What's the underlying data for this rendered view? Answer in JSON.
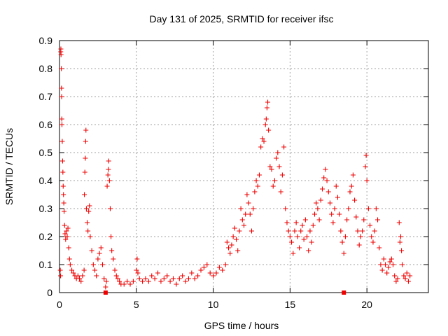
{
  "chart_data": {
    "type": "scatter",
    "title": "Day 131 of 2025, SRMTID for receiver ifsc",
    "xlabel": "GPS time / hours",
    "ylabel": "SRMTID / TECUs",
    "xlim": [
      0,
      24
    ],
    "ylim": [
      0,
      0.9
    ],
    "xticks": [
      0,
      5,
      10,
      15,
      20
    ],
    "yticks": [
      0,
      0.1,
      0.2,
      0.3,
      0.4,
      0.5,
      0.6,
      0.7,
      0.8,
      0.9
    ],
    "xtick_labels": [
      "0",
      "5",
      "10",
      "15",
      "20"
    ],
    "ytick_labels": [
      "0",
      "0.1",
      "0.2",
      "0.3",
      "0.4",
      "0.5",
      "0.6",
      "0.7",
      "0.8",
      "0.9"
    ],
    "grid": true,
    "marker": "plus",
    "color": "#ee0000",
    "series": [
      {
        "name": "SRMTID",
        "points": [
          [
            0.05,
            0.08
          ],
          [
            0.07,
            0.06
          ],
          [
            0.08,
            0.86
          ],
          [
            0.09,
            0.87
          ],
          [
            0.1,
            0.85
          ],
          [
            0.12,
            0.8
          ],
          [
            0.13,
            0.73
          ],
          [
            0.14,
            0.7
          ],
          [
            0.15,
            0.62
          ],
          [
            0.16,
            0.6
          ],
          [
            0.18,
            0.54
          ],
          [
            0.2,
            0.47
          ],
          [
            0.22,
            0.43
          ],
          [
            0.24,
            0.38
          ],
          [
            0.26,
            0.35
          ],
          [
            0.28,
            0.32
          ],
          [
            0.3,
            0.29
          ],
          [
            0.33,
            0.24
          ],
          [
            0.36,
            0.21
          ],
          [
            0.4,
            0.19
          ],
          [
            0.45,
            0.22
          ],
          [
            0.5,
            0.2
          ],
          [
            0.55,
            0.23
          ],
          [
            0.6,
            0.16
          ],
          [
            0.65,
            0.12
          ],
          [
            0.7,
            0.1
          ],
          [
            0.8,
            0.08
          ],
          [
            0.9,
            0.07
          ],
          [
            1.0,
            0.06
          ],
          [
            1.1,
            0.05
          ],
          [
            1.2,
            0.06
          ],
          [
            1.3,
            0.05
          ],
          [
            1.4,
            0.04
          ],
          [
            1.5,
            0.06
          ],
          [
            1.6,
            0.08
          ],
          [
            1.62,
            0.35
          ],
          [
            1.65,
            0.43
          ],
          [
            1.68,
            0.48
          ],
          [
            1.7,
            0.54
          ],
          [
            1.72,
            0.58
          ],
          [
            1.75,
            0.3
          ],
          [
            1.8,
            0.25
          ],
          [
            1.85,
            0.22
          ],
          [
            1.9,
            0.29
          ],
          [
            1.95,
            0.31
          ],
          [
            2.0,
            0.2
          ],
          [
            2.1,
            0.15
          ],
          [
            2.2,
            0.1
          ],
          [
            2.3,
            0.08
          ],
          [
            2.4,
            0.06
          ],
          [
            2.5,
            0.12
          ],
          [
            2.6,
            0.14
          ],
          [
            2.7,
            0.16
          ],
          [
            2.8,
            0.1
          ],
          [
            2.9,
            0.05
          ],
          [
            3.0,
            0.02
          ],
          [
            3.05,
            0.04
          ],
          [
            3.1,
            0.38
          ],
          [
            3.15,
            0.42
          ],
          [
            3.18,
            0.44
          ],
          [
            3.2,
            0.47
          ],
          [
            3.25,
            0.4
          ],
          [
            3.3,
            0.3
          ],
          [
            3.35,
            0.2
          ],
          [
            3.4,
            0.15
          ],
          [
            3.5,
            0.12
          ],
          [
            3.6,
            0.08
          ],
          [
            3.7,
            0.06
          ],
          [
            3.8,
            0.05
          ],
          [
            3.9,
            0.04
          ],
          [
            4.0,
            0.03
          ],
          [
            4.2,
            0.03
          ],
          [
            4.4,
            0.04
          ],
          [
            4.6,
            0.03
          ],
          [
            4.8,
            0.04
          ],
          [
            5.0,
            0.08
          ],
          [
            5.05,
            0.12
          ],
          [
            5.1,
            0.07
          ],
          [
            5.2,
            0.05
          ],
          [
            5.4,
            0.04
          ],
          [
            5.6,
            0.05
          ],
          [
            5.8,
            0.04
          ],
          [
            6.0,
            0.06
          ],
          [
            6.2,
            0.05
          ],
          [
            6.4,
            0.07
          ],
          [
            6.6,
            0.04
          ],
          [
            6.8,
            0.05
          ],
          [
            7.0,
            0.06
          ],
          [
            7.2,
            0.04
          ],
          [
            7.4,
            0.05
          ],
          [
            7.6,
            0.03
          ],
          [
            7.8,
            0.05
          ],
          [
            8.0,
            0.06
          ],
          [
            8.2,
            0.04
          ],
          [
            8.4,
            0.05
          ],
          [
            8.6,
            0.07
          ],
          [
            8.8,
            0.05
          ],
          [
            9.0,
            0.06
          ],
          [
            9.2,
            0.08
          ],
          [
            9.4,
            0.09
          ],
          [
            9.6,
            0.1
          ],
          [
            9.8,
            0.07
          ],
          [
            10.0,
            0.06
          ],
          [
            10.2,
            0.07
          ],
          [
            10.4,
            0.09
          ],
          [
            10.6,
            0.08
          ],
          [
            10.8,
            0.1
          ],
          [
            10.9,
            0.18
          ],
          [
            11.0,
            0.16
          ],
          [
            11.1,
            0.14
          ],
          [
            11.2,
            0.17
          ],
          [
            11.3,
            0.2
          ],
          [
            11.4,
            0.23
          ],
          [
            11.5,
            0.19
          ],
          [
            11.6,
            0.15
          ],
          [
            11.7,
            0.22
          ],
          [
            11.8,
            0.3
          ],
          [
            11.9,
            0.26
          ],
          [
            12.0,
            0.24
          ],
          [
            12.1,
            0.28
          ],
          [
            12.2,
            0.35
          ],
          [
            12.3,
            0.32
          ],
          [
            12.4,
            0.28
          ],
          [
            12.5,
            0.22
          ],
          [
            12.6,
            0.3
          ],
          [
            12.7,
            0.36
          ],
          [
            12.8,
            0.4
          ],
          [
            12.9,
            0.38
          ],
          [
            13.0,
            0.42
          ],
          [
            13.1,
            0.52
          ],
          [
            13.2,
            0.55
          ],
          [
            13.3,
            0.54
          ],
          [
            13.4,
            0.6
          ],
          [
            13.45,
            0.62
          ],
          [
            13.5,
            0.66
          ],
          [
            13.55,
            0.68
          ],
          [
            13.6,
            0.58
          ],
          [
            13.7,
            0.45
          ],
          [
            13.8,
            0.44
          ],
          [
            13.9,
            0.38
          ],
          [
            14.0,
            0.4
          ],
          [
            14.1,
            0.48
          ],
          [
            14.2,
            0.5
          ],
          [
            14.3,
            0.45
          ],
          [
            14.4,
            0.36
          ],
          [
            14.5,
            0.42
          ],
          [
            14.6,
            0.52
          ],
          [
            14.7,
            0.3
          ],
          [
            14.8,
            0.25
          ],
          [
            14.9,
            0.22
          ],
          [
            15.0,
            0.2
          ],
          [
            15.1,
            0.18
          ],
          [
            15.2,
            0.14
          ],
          [
            15.3,
            0.22
          ],
          [
            15.4,
            0.25
          ],
          [
            15.5,
            0.2
          ],
          [
            15.6,
            0.16
          ],
          [
            15.7,
            0.22
          ],
          [
            15.8,
            0.24
          ],
          [
            15.9,
            0.19
          ],
          [
            16.0,
            0.26
          ],
          [
            16.1,
            0.2
          ],
          [
            16.2,
            0.15
          ],
          [
            16.3,
            0.22
          ],
          [
            16.4,
            0.18
          ],
          [
            16.5,
            0.24
          ],
          [
            16.6,
            0.28
          ],
          [
            16.7,
            0.32
          ],
          [
            16.8,
            0.3
          ],
          [
            16.9,
            0.26
          ],
          [
            17.0,
            0.33
          ],
          [
            17.1,
            0.37
          ],
          [
            17.2,
            0.41
          ],
          [
            17.3,
            0.44
          ],
          [
            17.4,
            0.4
          ],
          [
            17.5,
            0.36
          ],
          [
            17.6,
            0.32
          ],
          [
            17.7,
            0.28
          ],
          [
            17.8,
            0.25
          ],
          [
            17.9,
            0.3
          ],
          [
            18.0,
            0.38
          ],
          [
            18.1,
            0.34
          ],
          [
            18.2,
            0.28
          ],
          [
            18.3,
            0.22
          ],
          [
            18.4,
            0.18
          ],
          [
            18.5,
            0.14
          ],
          [
            18.6,
            0.2
          ],
          [
            18.7,
            0.26
          ],
          [
            18.8,
            0.3
          ],
          [
            18.9,
            0.36
          ],
          [
            19.0,
            0.38
          ],
          [
            19.1,
            0.42
          ],
          [
            19.2,
            0.33
          ],
          [
            19.3,
            0.27
          ],
          [
            19.4,
            0.22
          ],
          [
            19.5,
            0.17
          ],
          [
            19.6,
            0.2
          ],
          [
            19.7,
            0.22
          ],
          [
            19.8,
            0.26
          ],
          [
            19.9,
            0.45
          ],
          [
            19.95,
            0.49
          ],
          [
            20.0,
            0.4
          ],
          [
            20.1,
            0.3
          ],
          [
            20.2,
            0.24
          ],
          [
            20.3,
            0.2
          ],
          [
            20.4,
            0.18
          ],
          [
            20.5,
            0.22
          ],
          [
            20.6,
            0.3
          ],
          [
            20.7,
            0.26
          ],
          [
            20.8,
            0.16
          ],
          [
            20.9,
            0.1
          ],
          [
            21.0,
            0.08
          ],
          [
            21.1,
            0.12
          ],
          [
            21.2,
            0.1
          ],
          [
            21.3,
            0.07
          ],
          [
            21.4,
            0.09
          ],
          [
            21.5,
            0.11
          ],
          [
            21.6,
            0.12
          ],
          [
            21.7,
            0.1
          ],
          [
            21.8,
            0.06
          ],
          [
            21.9,
            0.04
          ],
          [
            22.0,
            0.05
          ],
          [
            22.1,
            0.25
          ],
          [
            22.15,
            0.18
          ],
          [
            22.2,
            0.2
          ],
          [
            22.25,
            0.15
          ],
          [
            22.3,
            0.1
          ],
          [
            22.4,
            0.06
          ],
          [
            22.5,
            0.05
          ],
          [
            22.6,
            0.07
          ],
          [
            22.7,
            0.04
          ],
          [
            22.8,
            0.06
          ]
        ]
      }
    ],
    "zero_markers": [
      3.0,
      18.5
    ]
  }
}
